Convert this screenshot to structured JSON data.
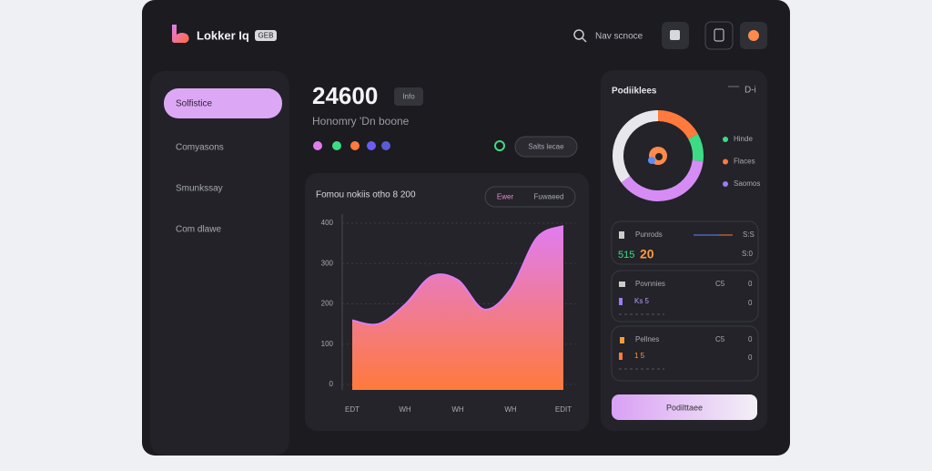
{
  "header": {
    "logo": "Lokker Iq",
    "badge": "GEB",
    "search": "Nav scnoce"
  },
  "sidebar": {
    "items": [
      "Solfistice",
      "Comyasons",
      "Smunkssay",
      "Com dlawe"
    ]
  },
  "summary": {
    "value": "24600",
    "badge": "Info",
    "subtitle": "Honomry 'Dn boone",
    "chip": "Salts lecae"
  },
  "area_chart": {
    "type": "area",
    "title": "Fomou nokiis otho 8 200",
    "tabs": [
      "Ewer",
      "Fuwaeed"
    ],
    "categories": [
      "EDT",
      null,
      "WH",
      null,
      "WH",
      null,
      "WH",
      null,
      "EDIT"
    ],
    "values": [
      159,
      150,
      198,
      268,
      259,
      186,
      236,
      364,
      393
    ],
    "ylim": [
      0,
      400
    ],
    "yticks": [
      0,
      100,
      200,
      300,
      400
    ],
    "grid": true,
    "color_top": "#e07cf0",
    "color_bottom": "#ff7a3c"
  },
  "panel": {
    "title": "Podiiklees",
    "tag": "D-i",
    "donut": {
      "type": "pie",
      "values": [
        17,
        10,
        38,
        35
      ],
      "colors": [
        "#ff7a3c",
        "#3ddc84",
        "#d58cf5",
        "#e8e8ec"
      ]
    },
    "legend": [
      {
        "label": "Hinde",
        "color": "#3ddc84"
      },
      {
        "label": "Flaces",
        "color": "#ff7a3c"
      },
      {
        "label": "Saomos",
        "color": "#9b7cf5"
      }
    ],
    "card1": {
      "title": "Punrods",
      "tag": "S:S",
      "value_a": "515",
      "value_b": "20",
      "right": "S:0"
    },
    "cards": [
      {
        "title": "Povnnies",
        "tag": "C5",
        "right": "0",
        "sub": "Ks 5",
        "sub_right": "0"
      },
      {
        "title": "Pellnes",
        "tag": "C5",
        "right": "0",
        "sub": "1 5",
        "sub_right": "0"
      }
    ],
    "button": "Podilttaee"
  }
}
